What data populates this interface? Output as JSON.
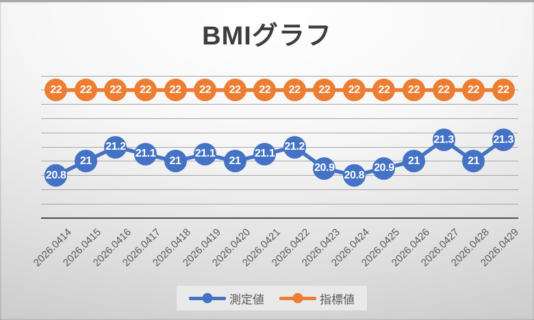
{
  "chart_data": {
    "type": "line",
    "title": "BMIグラフ",
    "categories": [
      "2026.0414",
      "2026.0415",
      "2026.0416",
      "2026.0417",
      "2026.0418",
      "2026.0419",
      "2026.0420",
      "2026.0421",
      "2026.0422",
      "2026.0423",
      "2026.0424",
      "2026.0425",
      "2026.0426",
      "2026.0427",
      "2026.0428",
      "2026.0429"
    ],
    "series": [
      {
        "name": "測定値",
        "color": "#4472C4",
        "values": [
          20.8,
          21,
          21.2,
          21.1,
          21,
          21.1,
          21,
          21.1,
          21.2,
          20.9,
          20.8,
          20.9,
          21,
          21.3,
          21,
          21.3
        ]
      },
      {
        "name": "指標値",
        "color": "#ED7D31",
        "values": [
          22,
          22,
          22,
          22,
          22,
          22,
          22,
          22,
          22,
          22,
          22,
          22,
          22,
          22,
          22,
          22
        ]
      }
    ],
    "ylim": [
      20.2,
      22.2
    ],
    "y_step": 0.2,
    "grid": true,
    "y_axis_labels_visible": false,
    "legend_position": "bottom",
    "data_labels": "center",
    "data_label_color": "#FFFFFF",
    "axis_label_color": "#595959",
    "gridline_color": "#A6A6A6",
    "title_color": "#3D3D3D"
  }
}
